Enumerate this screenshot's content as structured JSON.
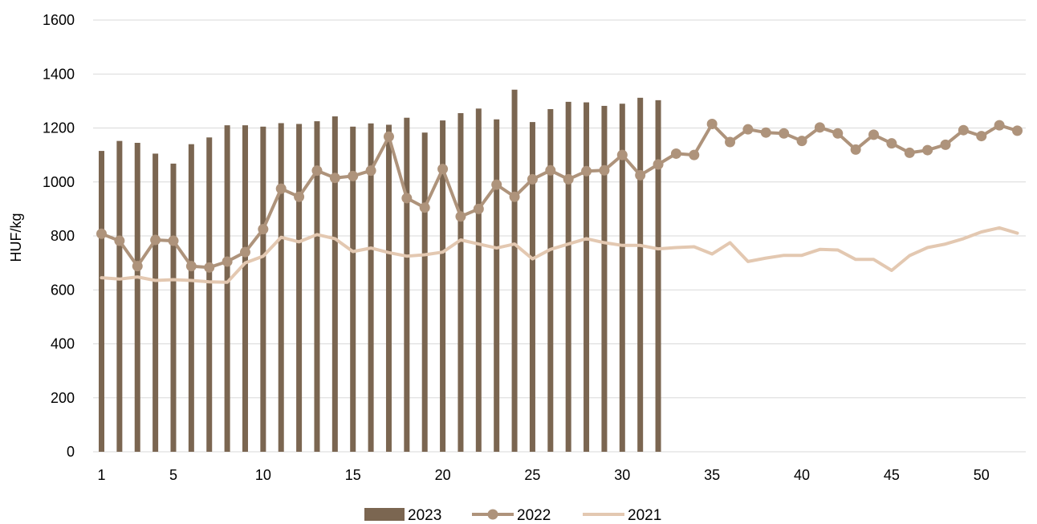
{
  "chart_data": {
    "type": "bar+line",
    "ylabel": "HUF/kg",
    "ylim": [
      0,
      1600
    ],
    "yticks": [
      "0",
      "200",
      "400",
      "600",
      "800",
      "1000",
      "1200",
      "1400",
      "1600"
    ],
    "xlim": [
      1,
      52
    ],
    "xticks": [
      "1",
      "5",
      "10",
      "15",
      "20",
      "25",
      "30",
      "35",
      "40",
      "45",
      "50"
    ],
    "grid": "horizontal",
    "legend_position": "bottom",
    "colors": {
      "bar": "#7b6651",
      "line2022": "#ae937b",
      "line2021": "#e3c8b1",
      "grid": "#d9d9d9"
    },
    "series": [
      {
        "name": "2023",
        "type": "bar",
        "x": [
          1,
          2,
          3,
          4,
          5,
          6,
          7,
          8,
          9,
          10,
          11,
          12,
          13,
          14,
          15,
          16,
          17,
          18,
          19,
          20,
          21,
          22,
          23,
          24,
          25,
          26,
          27,
          28,
          29,
          30,
          31,
          32
        ],
        "values": [
          1115,
          1152,
          1145,
          1105,
          1068,
          1140,
          1165,
          1210,
          1210,
          1205,
          1218,
          1215,
          1225,
          1243,
          1205,
          1217,
          1212,
          1238,
          1183,
          1228,
          1255,
          1272,
          1232,
          1342,
          1222,
          1270,
          1297,
          1295,
          1282,
          1290,
          1312,
          1303
        ]
      },
      {
        "name": "2022",
        "type": "line",
        "marker": "circle",
        "x": [
          1,
          2,
          3,
          4,
          5,
          6,
          7,
          8,
          9,
          10,
          11,
          12,
          13,
          14,
          15,
          16,
          17,
          18,
          19,
          20,
          21,
          22,
          23,
          24,
          25,
          26,
          27,
          28,
          29,
          30,
          31,
          32,
          33,
          34,
          35,
          36,
          37,
          38,
          39,
          40,
          41,
          42,
          43,
          44,
          45,
          46,
          47,
          48,
          49,
          50,
          51,
          52
        ],
        "values": [
          808,
          782,
          688,
          785,
          782,
          688,
          683,
          705,
          740,
          825,
          975,
          945,
          1042,
          1015,
          1022,
          1042,
          1168,
          940,
          905,
          1048,
          872,
          900,
          990,
          945,
          1010,
          1043,
          1010,
          1040,
          1043,
          1100,
          1025,
          1065,
          1105,
          1100,
          1215,
          1148,
          1195,
          1183,
          1180,
          1152,
          1202,
          1180,
          1120,
          1175,
          1143,
          1108,
          1118,
          1138,
          1192,
          1170,
          1210,
          1190
        ]
      },
      {
        "name": "2021",
        "type": "line",
        "x": [
          1,
          2,
          3,
          4,
          5,
          6,
          7,
          8,
          9,
          10,
          11,
          12,
          13,
          14,
          15,
          16,
          17,
          18,
          19,
          20,
          21,
          22,
          23,
          24,
          25,
          26,
          27,
          28,
          29,
          30,
          31,
          32,
          33,
          34,
          35,
          36,
          37,
          38,
          39,
          40,
          41,
          42,
          43,
          44,
          45,
          46,
          47,
          48,
          49,
          50,
          51,
          52
        ],
        "values": [
          645,
          640,
          648,
          635,
          638,
          635,
          630,
          628,
          700,
          725,
          795,
          778,
          805,
          790,
          742,
          755,
          738,
          725,
          730,
          740,
          785,
          770,
          755,
          770,
          715,
          750,
          770,
          790,
          775,
          765,
          765,
          752,
          757,
          760,
          733,
          775,
          705,
          718,
          728,
          728,
          750,
          748,
          713,
          713,
          672,
          727,
          757,
          770,
          790,
          815,
          830,
          810
        ]
      }
    ]
  }
}
